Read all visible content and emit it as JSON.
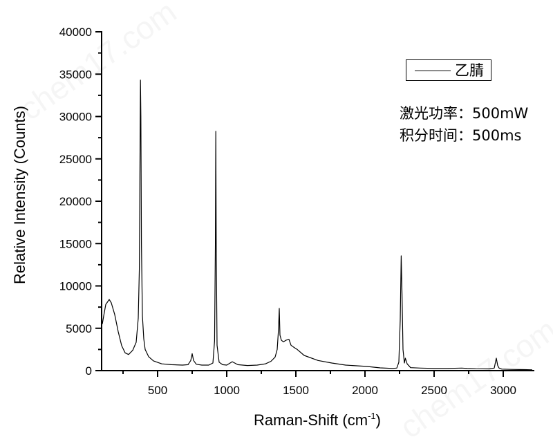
{
  "chart_data": {
    "type": "line",
    "title": "",
    "xlabel": "Raman-Shift (cm",
    "xlabel_sup": "-1",
    "xlabel_close": ")",
    "ylabel": "Relative Intensity (Counts)",
    "xlim": [
      100,
      3210
    ],
    "ylim": [
      0,
      40000
    ],
    "grid": false,
    "legend_position": "upper right",
    "x_ticks": [
      500,
      1000,
      1500,
      2000,
      2500,
      3000
    ],
    "x_tick_labels": [
      "500",
      "1000",
      "1500",
      "2000",
      "2500",
      "3000"
    ],
    "x_minor_ticks": [
      250,
      750,
      1250,
      1750,
      2250,
      2750
    ],
    "y_ticks": [
      0,
      5000,
      10000,
      15000,
      20000,
      25000,
      30000,
      35000,
      40000
    ],
    "y_tick_labels": [
      "0",
      "5000",
      "10000",
      "15000",
      "20000",
      "25000",
      "30000",
      "35000",
      "40000"
    ],
    "y_minor_ticks": [
      2500,
      7500,
      12500,
      17500,
      22500,
      27500,
      32500,
      37500
    ],
    "series": [
      {
        "name": "乙腈",
        "color": "#000000",
        "x": [
          100,
          110,
          125,
          150,
          165,
          190,
          215,
          240,
          265,
          290,
          320,
          345,
          360,
          368,
          373,
          376,
          379,
          383,
          390,
          400,
          410,
          435,
          470,
          530,
          600,
          680,
          720,
          740,
          750,
          760,
          780,
          820,
          870,
          900,
          912,
          918,
          921,
          924,
          930,
          945,
          970,
          1000,
          1040,
          1080,
          1150,
          1220,
          1280,
          1320,
          1350,
          1365,
          1375,
          1380,
          1385,
          1395,
          1410,
          1430,
          1450,
          1465,
          1490,
          1510,
          1560,
          1660,
          1760,
          1860,
          2010,
          2110,
          2200,
          2230,
          2245,
          2255,
          2262,
          2268,
          2275,
          2285,
          2292,
          2305,
          2330,
          2400,
          2500,
          2600,
          2700,
          2740,
          2800,
          2900,
          2935,
          2950,
          2960,
          2970,
          2990,
          3050,
          3150,
          3210
        ],
        "y": [
          5500,
          6450,
          7800,
          8400,
          8000,
          6600,
          4600,
          2950,
          2100,
          1900,
          2400,
          3350,
          6200,
          12000,
          26000,
          34300,
          30000,
          15000,
          6500,
          3750,
          2500,
          1650,
          1150,
          800,
          700,
          650,
          700,
          1200,
          2000,
          1200,
          750,
          650,
          650,
          900,
          3500,
          15000,
          28250,
          15000,
          3000,
          1000,
          700,
          650,
          1050,
          700,
          600,
          650,
          800,
          1100,
          1600,
          2500,
          5000,
          7350,
          4200,
          3600,
          3400,
          3600,
          3700,
          3000,
          2700,
          2500,
          1800,
          1200,
          900,
          650,
          500,
          330,
          250,
          300,
          1000,
          6000,
          13550,
          9000,
          2500,
          900,
          1470,
          800,
          350,
          300,
          250,
          250,
          300,
          250,
          220,
          200,
          300,
          1470,
          600,
          300,
          180,
          150,
          120,
          100
        ]
      }
    ]
  },
  "legend": {
    "label": "乙腈"
  },
  "annotations": {
    "laser_power": "激光功率：500mW",
    "integration_time": "积分时间：500ms"
  },
  "watermark": {
    "text": "chem17.com"
  }
}
